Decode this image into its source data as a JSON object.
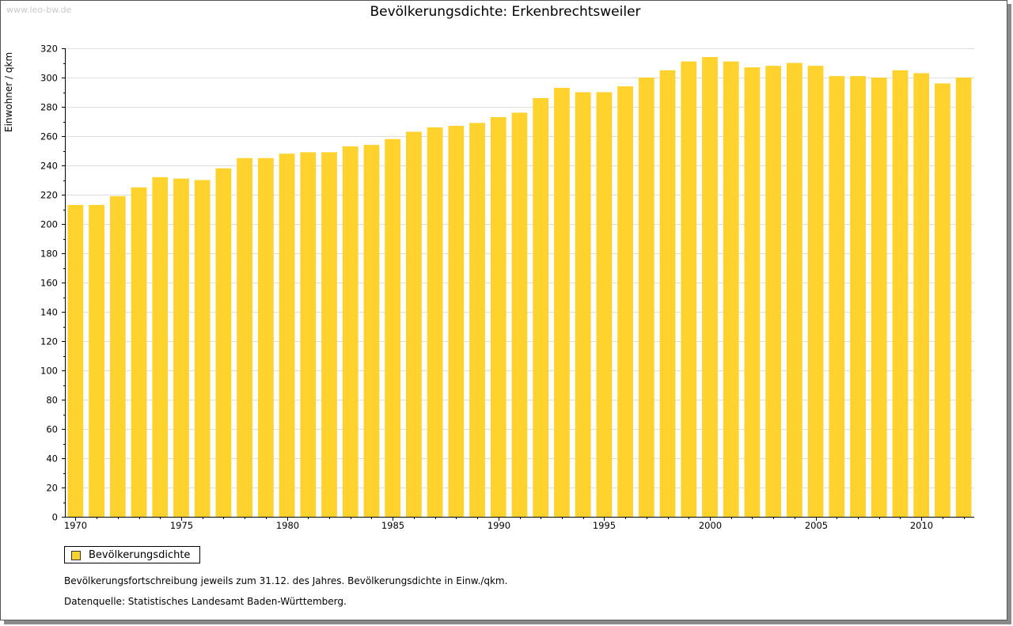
{
  "watermark": "www.leo-bw.de",
  "chart_data": {
    "type": "bar",
    "title": "Bevölkerungsdichte: Erkenbrechtsweiler",
    "ylabel": "Einwohner / qkm",
    "xlabel": "",
    "ylim": [
      0,
      320
    ],
    "yticks": [
      0,
      20,
      40,
      60,
      80,
      100,
      120,
      140,
      160,
      180,
      200,
      220,
      240,
      260,
      280,
      300,
      320
    ],
    "xtick_labels": [
      "1970",
      "1975",
      "1980",
      "1985",
      "1990",
      "1995",
      "2000",
      "2005",
      "2010"
    ],
    "grid": true,
    "legend_position": "bottom-left",
    "color": "#FFD22D",
    "categories": [
      1970,
      1971,
      1972,
      1973,
      1974,
      1975,
      1976,
      1977,
      1978,
      1979,
      1980,
      1981,
      1982,
      1983,
      1984,
      1985,
      1986,
      1987,
      1988,
      1989,
      1990,
      1991,
      1992,
      1993,
      1994,
      1995,
      1996,
      1997,
      1998,
      1999,
      2000,
      2001,
      2002,
      2003,
      2004,
      2005,
      2006,
      2007,
      2008,
      2009,
      2010,
      2011,
      2012
    ],
    "series": [
      {
        "name": "Bevölkerungsdichte",
        "values": [
          213,
          213,
          219,
          225,
          232,
          231,
          230,
          238,
          245,
          245,
          248,
          249,
          249,
          253,
          254,
          258,
          263,
          266,
          267,
          269,
          273,
          276,
          286,
          293,
          290,
          290,
          294,
          300,
          305,
          311,
          314,
          311,
          307,
          308,
          310,
          308,
          301,
          301,
          300,
          305,
          303,
          296,
          300
        ]
      }
    ]
  },
  "notes": {
    "line1": "Bevölkerungsfortschreibung jeweils zum 31.12. des Jahres. Bevölkerungsdichte in Einw./qkm.",
    "line2": "Datenquelle: Statistisches Landesamt Baden-Württemberg."
  }
}
